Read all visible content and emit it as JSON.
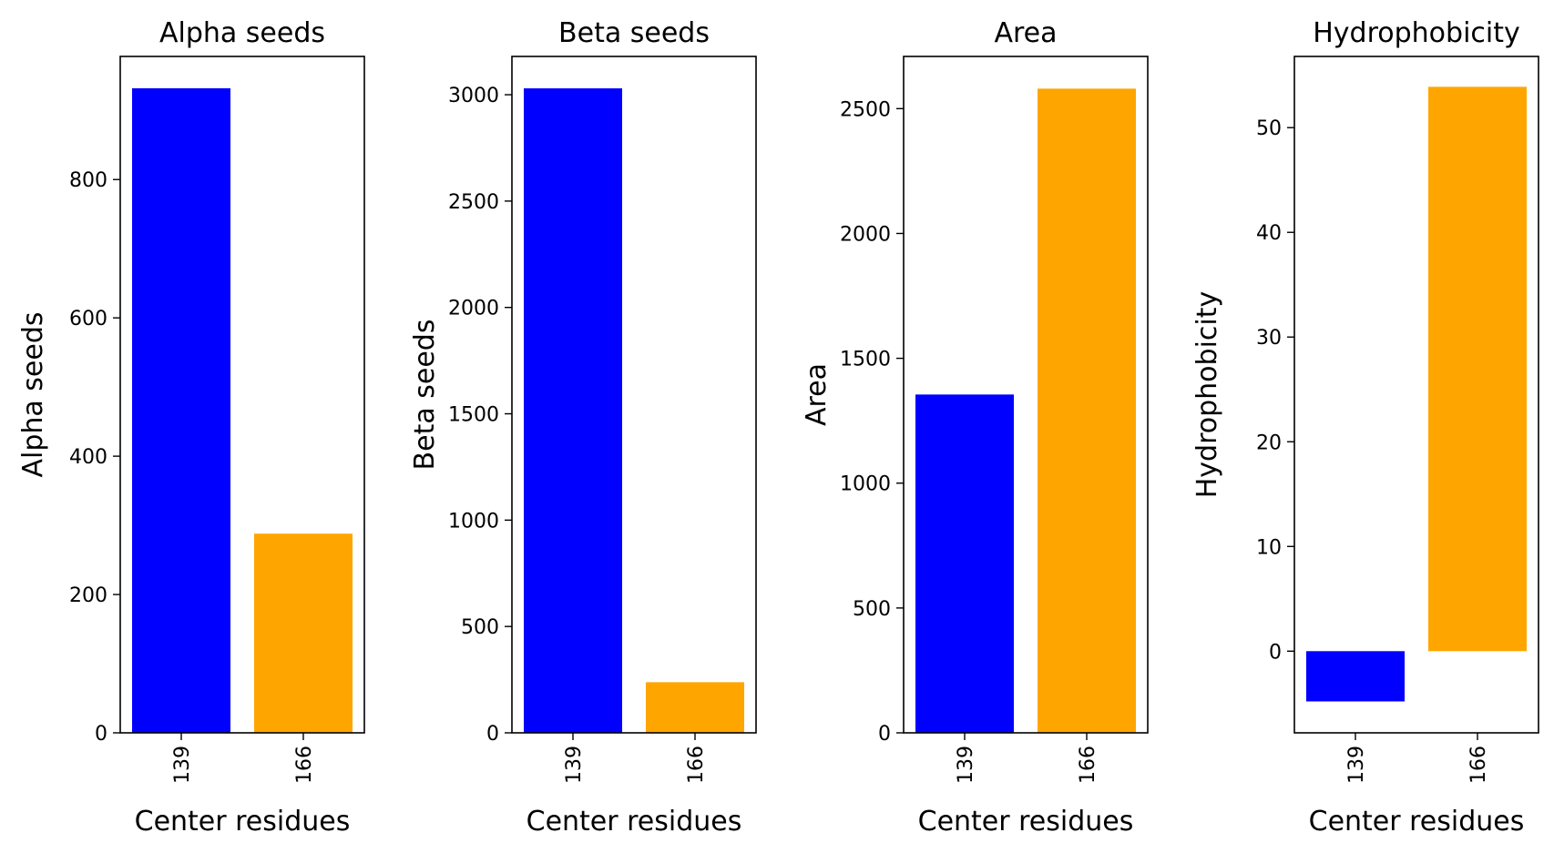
{
  "chart_data": [
    {
      "type": "bar",
      "title": "Alpha seeds",
      "xlabel": "Center residues",
      "ylabel": "Alpha seeds",
      "categories": [
        "139",
        "166"
      ],
      "values": [
        932,
        288
      ],
      "colors": [
        "#0000ff",
        "#ffa500"
      ],
      "yticks": [
        0,
        200,
        400,
        600,
        800
      ],
      "ylim": [
        0,
        978
      ],
      "grid": false
    },
    {
      "type": "bar",
      "title": "Beta seeds",
      "xlabel": "Center residues",
      "ylabel": "Beta seeds",
      "categories": [
        "139",
        "166"
      ],
      "values": [
        3030,
        238
      ],
      "colors": [
        "#0000ff",
        "#ffa500"
      ],
      "yticks": [
        0,
        500,
        1000,
        1500,
        2000,
        2500,
        3000
      ],
      "ylim": [
        0,
        3180
      ],
      "grid": false
    },
    {
      "type": "bar",
      "title": "Area",
      "xlabel": "Center residues",
      "ylabel": "Area",
      "categories": [
        "139",
        "166"
      ],
      "values": [
        1355,
        2580
      ],
      "colors": [
        "#0000ff",
        "#ffa500"
      ],
      "yticks": [
        0,
        500,
        1000,
        1500,
        2000,
        2500
      ],
      "ylim": [
        0,
        2709
      ],
      "grid": false
    },
    {
      "type": "bar",
      "title": "Hydrophobicity",
      "xlabel": "Center residues",
      "ylabel": "Hydrophobicity",
      "categories": [
        "139",
        "166"
      ],
      "values": [
        -4.8,
        53.9
      ],
      "colors": [
        "#0000ff",
        "#ffa500"
      ],
      "yticks": [
        0,
        10,
        20,
        30,
        40,
        50
      ],
      "ylim": [
        -7.8,
        56.8
      ],
      "grid": false
    }
  ]
}
